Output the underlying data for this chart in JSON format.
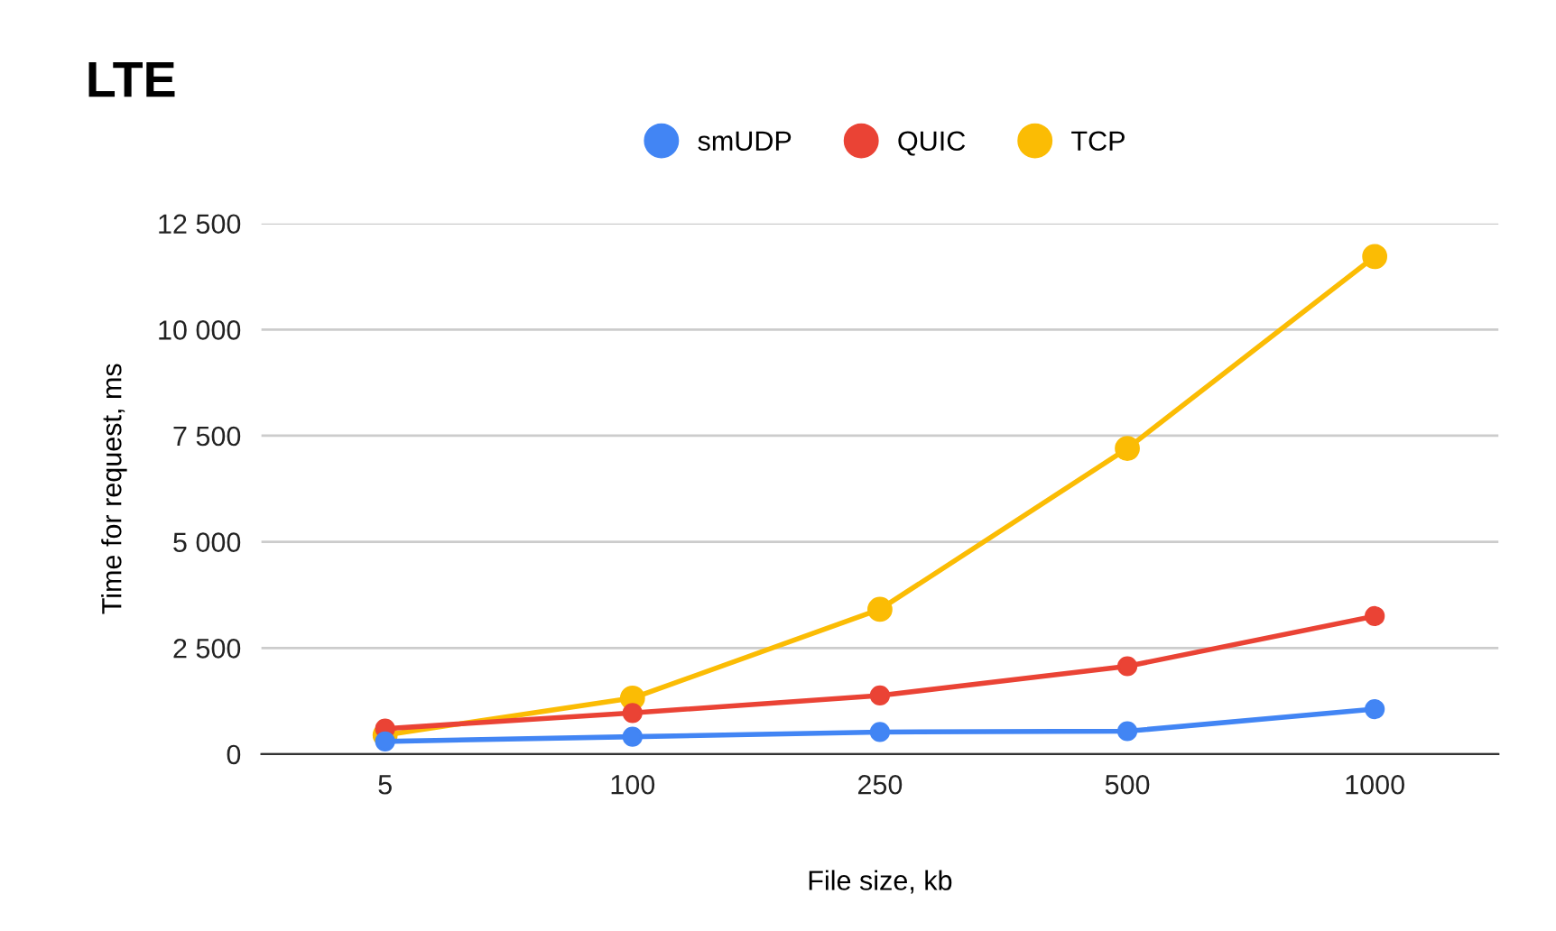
{
  "chart_data": {
    "type": "line",
    "title": "LTE",
    "xlabel": "File size, kb",
    "ylabel": "Time for request, ms",
    "categories": [
      "5",
      "100",
      "250",
      "500",
      "1000"
    ],
    "series": [
      {
        "name": "smUDP",
        "color": "#4285f4",
        "values": [
          300,
          410,
          520,
          540,
          1060
        ]
      },
      {
        "name": "QUIC",
        "color": "#ea4335",
        "values": [
          600,
          970,
          1380,
          2070,
          3250
        ]
      },
      {
        "name": "TCP",
        "color": "#fbbc04",
        "values": [
          450,
          1320,
          3410,
          7200,
          11720
        ]
      }
    ],
    "ylim": [
      0,
      12500
    ],
    "yticks": [
      {
        "value": 0,
        "label": "0"
      },
      {
        "value": 2500,
        "label": "2 500"
      },
      {
        "value": 5000,
        "label": "5 000"
      },
      {
        "value": 7500,
        "label": "7 500"
      },
      {
        "value": 10000,
        "label": "10 000"
      },
      {
        "value": 12500,
        "label": "12 500"
      }
    ],
    "grid": "y",
    "legend": "top",
    "marker": "circle",
    "line_style": "solid"
  }
}
